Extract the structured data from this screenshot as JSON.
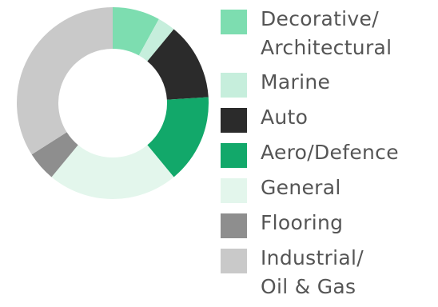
{
  "chart_data": {
    "type": "pie",
    "donut": true,
    "legend_position": "right",
    "slices": [
      {
        "label": "Decorative/\nArchitectural",
        "value": 8,
        "color": "#7dddb0"
      },
      {
        "label": "Marine",
        "value": 3,
        "color": "#c6eedc"
      },
      {
        "label": "Auto",
        "value": 13,
        "color": "#2b2b2b"
      },
      {
        "label": "Aero/Defence",
        "value": 15,
        "color": "#12a86a"
      },
      {
        "label": "General",
        "value": 22,
        "color": "#e3f6ec"
      },
      {
        "label": "Flooring",
        "value": 5,
        "color": "#8e8e8e"
      },
      {
        "label": "Industrial/\nOil & Gas",
        "value": 34,
        "color": "#c9c9c9"
      }
    ]
  }
}
